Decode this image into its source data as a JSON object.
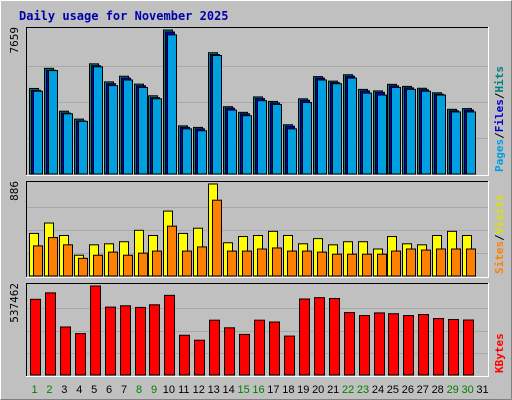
{
  "chart_data": {
    "type": "bar",
    "title": "Daily usage for November 2025",
    "days": [
      "1",
      "2",
      "3",
      "4",
      "5",
      "6",
      "7",
      "8",
      "9",
      "10",
      "11",
      "12",
      "13",
      "14",
      "15",
      "16",
      "17",
      "18",
      "19",
      "20",
      "21",
      "22",
      "23",
      "24",
      "25",
      "26",
      "27",
      "28",
      "29",
      "30",
      "31"
    ],
    "weekend_days": [
      "1",
      "2",
      "8",
      "9",
      "15",
      "16",
      "22",
      "23",
      "29",
      "30"
    ],
    "panels": [
      {
        "name": "hits-pages-files",
        "ymax_label": "7659",
        "legend": [
          {
            "text": "Pages",
            "color": "#00a0e0"
          },
          {
            "text": "/",
            "color": "#000000"
          },
          {
            "text": "Files",
            "color": "#0000cc"
          },
          {
            "text": "/",
            "color": "#000000"
          },
          {
            "text": "Hits",
            "color": "#008080"
          }
        ],
        "ymax": 7659,
        "series": [
          {
            "name": "Hits",
            "color": "#008080",
            "values": [
              4550,
              5620,
              3340,
              2920,
              5860,
              4900,
              5200,
              4780,
              4160,
              7659,
              2560,
              2480,
              6450,
              3580,
              3280,
              4100,
              3860,
              2620,
              4000,
              5180,
              4940,
              5280,
              4500,
              4420,
              4770,
              4660,
              4560,
              4320,
              3440,
              3480,
              0
            ]
          },
          {
            "name": "Files",
            "color": "#0000cc",
            "values": [
              4450,
              5520,
              3240,
              2820,
              5760,
              4800,
              5100,
              4690,
              4060,
              7550,
              2480,
              2400,
              6350,
              3500,
              3200,
              4010,
              3780,
              2540,
              3920,
              5100,
              4860,
              5200,
              4420,
              4340,
              4690,
              4580,
              4480,
              4240,
              3360,
              3400,
              0
            ]
          },
          {
            "name": "Pages",
            "color": "#00a0e0",
            "values": [
              4400,
              5500,
              3200,
              2800,
              5700,
              4700,
              5000,
              4600,
              4000,
              7400,
              2400,
              2300,
              6300,
              3400,
              3100,
              3900,
              3700,
              2400,
              3800,
              5000,
              4800,
              5100,
              4300,
              4200,
              4600,
              4500,
              4400,
              4200,
              3300,
              3300,
              0
            ]
          }
        ]
      },
      {
        "name": "visits-sites",
        "ymax_label": "886",
        "legend": [
          {
            "text": "Sites",
            "color": "#ff8000"
          },
          {
            "text": "/",
            "color": "#000000"
          },
          {
            "text": "Visits",
            "color": "#e0e000"
          }
        ],
        "ymax": 886,
        "series": [
          {
            "name": "Visits",
            "color": "#ffff00",
            "values": [
              410,
              510,
              390,
              200,
              300,
              310,
              330,
              440,
              390,
              625,
              410,
              460,
              886,
              320,
              380,
              390,
              430,
              390,
              310,
              360,
              300,
              330,
              330,
              260,
              380,
              310,
              300,
              390,
              430,
              390,
              0
            ]
          },
          {
            "name": "Sites",
            "color": "#ff8000",
            "values": [
              290,
              370,
              300,
              170,
              200,
              230,
              200,
              220,
              240,
              480,
              240,
              280,
              730,
              240,
              240,
              260,
              270,
              240,
              240,
              230,
              210,
              210,
              210,
              210,
              240,
              260,
              250,
              260,
              260,
              260,
              0
            ]
          }
        ]
      },
      {
        "name": "kbytes",
        "ymax_label": "537462",
        "legend": [
          {
            "text": "KBytes",
            "color": "#ff0000"
          }
        ],
        "ymax": 537462,
        "series": [
          {
            "name": "KBytes",
            "color": "#ff0000",
            "values": [
              457000,
              496000,
              290000,
              250000,
              537462,
              410000,
              418000,
              408000,
              424000,
              481000,
              240000,
              210000,
              331000,
              285000,
              245000,
              331000,
              320000,
              235000,
              459000,
              467000,
              462000,
              377000,
              359000,
              375000,
              370000,
              359000,
              365000,
              341000,
              335000,
              332000,
              0
            ]
          }
        ]
      }
    ]
  }
}
